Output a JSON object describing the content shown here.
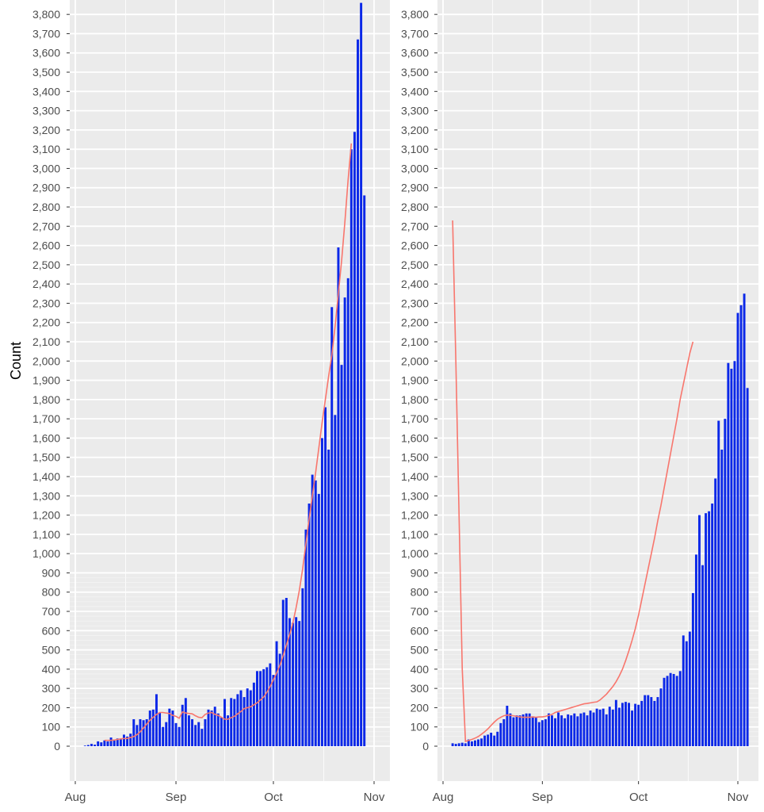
{
  "chart_data": [
    {
      "type": "bar",
      "panel": "left",
      "ylabel": "Count",
      "xlabel": "",
      "ylim": [
        -210,
        3880
      ],
      "y_ticks": [
        0,
        100,
        200,
        300,
        400,
        500,
        600,
        700,
        800,
        900,
        1000,
        1100,
        1200,
        1300,
        1400,
        1500,
        1600,
        1700,
        1800,
        1900,
        2000,
        2100,
        2200,
        2300,
        2400,
        2500,
        2600,
        2700,
        2800,
        2900,
        3000,
        3100,
        3200,
        3300,
        3400,
        3500,
        3600,
        3700,
        3800
      ],
      "x_ticks": [
        "Aug",
        "Sep",
        "Oct",
        "Nov"
      ],
      "x_tick_days": [
        0,
        31,
        61,
        92
      ],
      "grid": true,
      "bar_color": "#0a27e8",
      "line_color": "#f8766d",
      "bar_days_start": 3,
      "bars": [
        3,
        6,
        12,
        8,
        25,
        20,
        30,
        25,
        45,
        30,
        40,
        35,
        60,
        50,
        65,
        140,
        110,
        140,
        135,
        140,
        185,
        190,
        270,
        175,
        100,
        125,
        195,
        185,
        120,
        100,
        215,
        250,
        160,
        140,
        110,
        125,
        90,
        140,
        190,
        185,
        205,
        170,
        150,
        245,
        160,
        250,
        245,
        270,
        290,
        255,
        300,
        290,
        330,
        390,
        390,
        400,
        410,
        430,
        370,
        545,
        480,
        760,
        770,
        665,
        640,
        670,
        650,
        820,
        1125,
        1260,
        1410,
        1380,
        1310,
        1600,
        1760,
        1540,
        2280,
        1720,
        2590,
        1980,
        2330,
        2430,
        3100,
        3190,
        3670,
        3860,
        2860
      ],
      "line_start_day": 9,
      "line": [
        30,
        30,
        30,
        32,
        35,
        38,
        40,
        40,
        45,
        50,
        60,
        75,
        95,
        115,
        135,
        150,
        165,
        175,
        175,
        172,
        170,
        160,
        155,
        145,
        178,
        172,
        170,
        168,
        158,
        150,
        148,
        165,
        172,
        175,
        165,
        160,
        150,
        140,
        140,
        148,
        155,
        168,
        180,
        195,
        200,
        205,
        215,
        225,
        240,
        255,
        280,
        310,
        345,
        380,
        420,
        470,
        525,
        580,
        640,
        720,
        810,
        920,
        1050,
        1180,
        1300,
        1420,
        1550,
        1680,
        1800,
        1920,
        2030,
        2180,
        2350,
        2520,
        2720,
        2940,
        3130
      ]
    },
    {
      "type": "bar",
      "panel": "right",
      "ylabel": "",
      "xlabel": "",
      "ylim": [
        -210,
        3880
      ],
      "y_ticks": [
        0,
        100,
        200,
        300,
        400,
        500,
        600,
        700,
        800,
        900,
        1000,
        1100,
        1200,
        1300,
        1400,
        1500,
        1600,
        1700,
        1800,
        1900,
        2000,
        2100,
        2200,
        2300,
        2400,
        2500,
        2600,
        2700,
        2800,
        2900,
        3000,
        3100,
        3200,
        3300,
        3400,
        3500,
        3600,
        3700,
        3800
      ],
      "x_ticks": [
        "Aug",
        "Sep",
        "Oct",
        "Nov"
      ],
      "x_tick_days": [
        0,
        31,
        61,
        92
      ],
      "grid": true,
      "bar_color": "#0a27e8",
      "line_color": "#f8766d",
      "bar_days_start": 3,
      "bars": [
        15,
        12,
        15,
        18,
        15,
        35,
        25,
        30,
        35,
        40,
        55,
        60,
        70,
        55,
        75,
        120,
        140,
        210,
        170,
        150,
        160,
        160,
        165,
        170,
        170,
        155,
        150,
        125,
        135,
        140,
        170,
        160,
        145,
        175,
        160,
        145,
        165,
        160,
        170,
        155,
        170,
        175,
        160,
        185,
        175,
        195,
        190,
        195,
        165,
        205,
        190,
        240,
        200,
        225,
        230,
        225,
        185,
        220,
        215,
        235,
        265,
        265,
        255,
        235,
        255,
        300,
        355,
        365,
        380,
        375,
        365,
        390,
        575,
        545,
        595,
        795,
        995,
        1200,
        940,
        1210,
        1220,
        1260,
        1390,
        1690,
        1540,
        1700,
        1990,
        1960,
        2000,
        2250,
        2290,
        2350,
        1860
      ],
      "line_start_day": 3,
      "line": [
        2730,
        2000,
        1200,
        400,
        25,
        30,
        35,
        42,
        50,
        62,
        75,
        90,
        108,
        125,
        140,
        150,
        158,
        162,
        160,
        158,
        155,
        152,
        150,
        150,
        150,
        152,
        150,
        152,
        152,
        155,
        160,
        165,
        175,
        180,
        185,
        190,
        195,
        200,
        205,
        210,
        215,
        220,
        222,
        225,
        228,
        230,
        240,
        255,
        270,
        290,
        310,
        335,
        365,
        400,
        445,
        495,
        550,
        610,
        680,
        760,
        840,
        920,
        1000,
        1080,
        1170,
        1250,
        1340,
        1430,
        1520,
        1610,
        1700,
        1800,
        1880,
        1960,
        2040,
        2100
      ]
    }
  ]
}
